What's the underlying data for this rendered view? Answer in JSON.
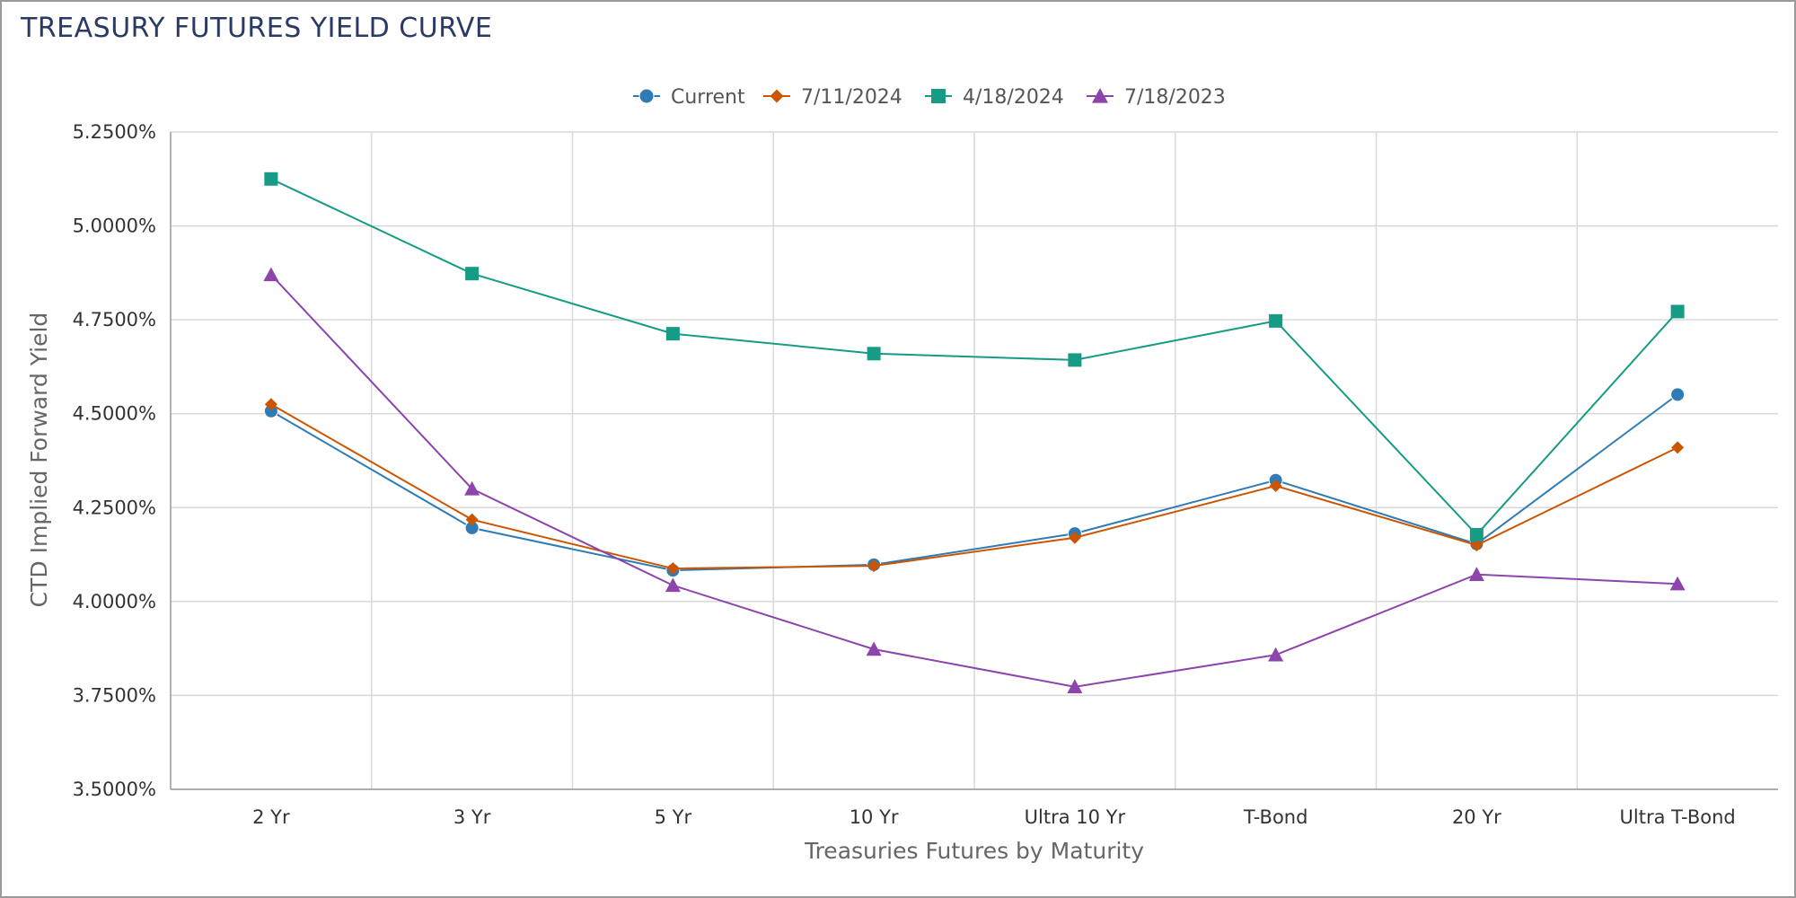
{
  "chart_data": {
    "type": "line",
    "title": "TREASURY FUTURES YIELD CURVE",
    "xlabel": "Treasuries Futures by Maturity",
    "ylabel": "CTD Implied Forward Yield",
    "categories": [
      "2 Yr",
      "3 Yr",
      "5 Yr",
      "10 Yr",
      "Ultra 10 Yr",
      "T-Bond",
      "20 Yr",
      "Ultra T-Bond"
    ],
    "ylim": [
      3.5,
      5.25
    ],
    "yticks": [
      {
        "value": 3.5,
        "label": "3.5000%"
      },
      {
        "value": 3.75,
        "label": "3.7500%"
      },
      {
        "value": 4.0,
        "label": "4.0000%"
      },
      {
        "value": 4.25,
        "label": "4.2500%"
      },
      {
        "value": 4.5,
        "label": "4.5000%"
      },
      {
        "value": 4.75,
        "label": "4.7500%"
      },
      {
        "value": 5.0,
        "label": "5.0000%"
      },
      {
        "value": 5.25,
        "label": "5.2500%"
      }
    ],
    "grid": true,
    "legend_position": "top-center",
    "series": [
      {
        "name": "Current",
        "color": "#2f7bb5",
        "marker": "circle",
        "values": [
          4.507,
          4.196,
          4.083,
          4.098,
          4.181,
          4.323,
          4.153,
          4.551
        ]
      },
      {
        "name": "7/11/2024",
        "color": "#cc5500",
        "marker": "diamond",
        "values": [
          4.525,
          4.218,
          4.088,
          4.095,
          4.17,
          4.308,
          4.15,
          4.41
        ]
      },
      {
        "name": "4/18/2024",
        "color": "#169b85",
        "marker": "square",
        "values": [
          5.125,
          4.873,
          4.713,
          4.66,
          4.643,
          4.747,
          4.178,
          4.772
        ]
      },
      {
        "name": "7/18/2023",
        "color": "#8e44ad",
        "marker": "triangle",
        "values": [
          4.87,
          4.3,
          4.043,
          3.873,
          3.773,
          3.858,
          4.072,
          4.047
        ]
      }
    ]
  }
}
